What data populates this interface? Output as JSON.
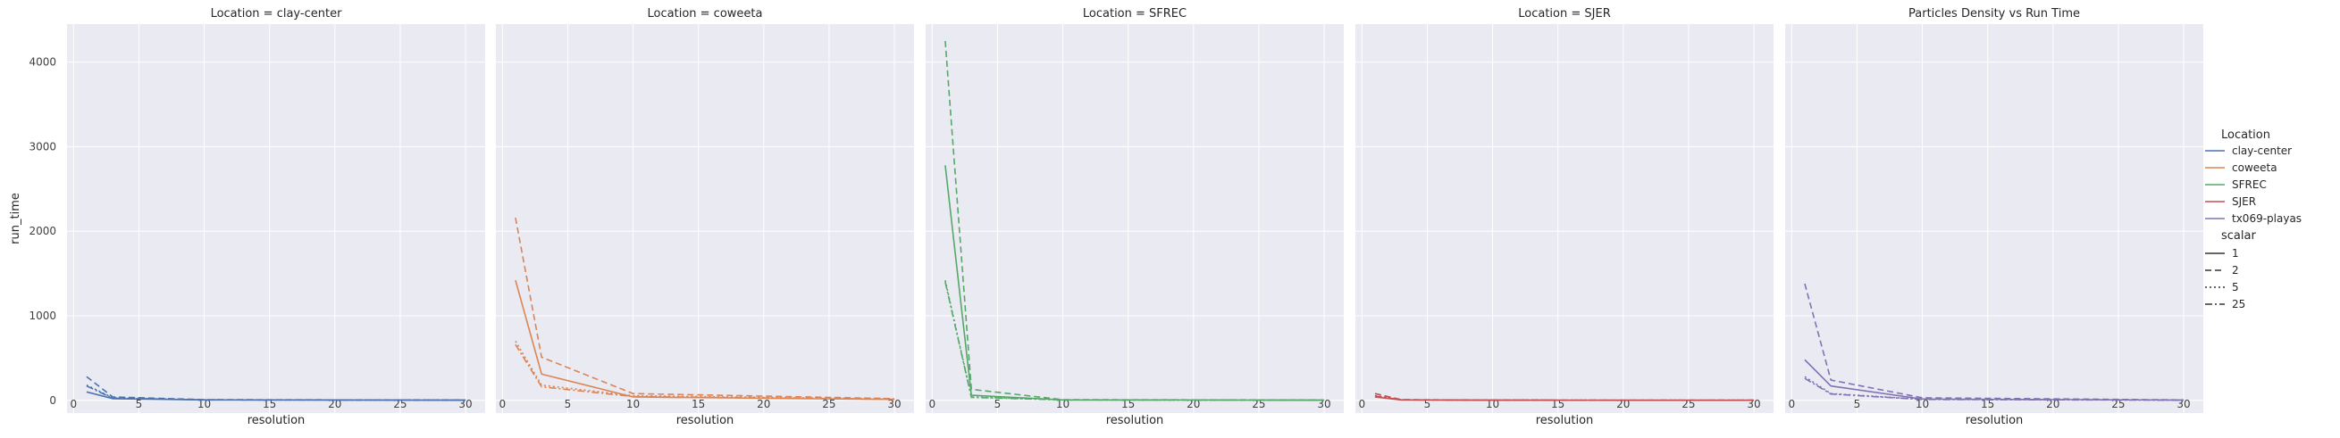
{
  "chart_data": {
    "type": "line",
    "xlabel": "resolution",
    "ylabel": "run_time",
    "xlim": [
      -0.5,
      31.5
    ],
    "ylim": [
      -150,
      4450
    ],
    "x_ticks": [
      0,
      5,
      10,
      15,
      20,
      25,
      30
    ],
    "y_ticks": [
      0,
      1000,
      2000,
      3000,
      4000
    ],
    "grid": true,
    "legend_placement": "right",
    "colors": {
      "clay-center": "#4c72b0",
      "coweeta": "#dd8452",
      "SFREC": "#55a868",
      "SJER": "#c44e52",
      "tx069-playas": "#8172b3"
    },
    "facets": [
      {
        "title": "Location = clay-center",
        "location": "clay-center",
        "series": [
          {
            "scalar": "1",
            "x": [
              1,
              3,
              10,
              30
            ],
            "y": [
              100,
              20,
              5,
              2
            ]
          },
          {
            "scalar": "2",
            "x": [
              1,
              3,
              10,
              30
            ],
            "y": [
              280,
              40,
              8,
              3
            ]
          },
          {
            "scalar": "5",
            "x": [
              1,
              3,
              10,
              30
            ],
            "y": [
              180,
              30,
              6,
              2
            ]
          },
          {
            "scalar": "25",
            "x": [
              1,
              3,
              10,
              30
            ],
            "y": [
              170,
              25,
              6,
              2
            ]
          }
        ]
      },
      {
        "title": "Location = coweeta",
        "location": "coweeta",
        "series": [
          {
            "scalar": "1",
            "x": [
              1,
              3,
              10,
              30
            ],
            "y": [
              1420,
              310,
              40,
              10
            ]
          },
          {
            "scalar": "2",
            "x": [
              1,
              3,
              10,
              30
            ],
            "y": [
              2160,
              510,
              80,
              20
            ]
          },
          {
            "scalar": "5",
            "x": [
              1,
              3,
              10,
              30
            ],
            "y": [
              700,
              180,
              55,
              15
            ]
          },
          {
            "scalar": "25",
            "x": [
              1,
              3,
              10,
              30
            ],
            "y": [
              660,
              160,
              45,
              12
            ]
          }
        ]
      },
      {
        "title": "Location = SFREC",
        "location": "SFREC",
        "series": [
          {
            "scalar": "1",
            "x": [
              1,
              3,
              10,
              30
            ],
            "y": [
              2780,
              60,
              5,
              2
            ]
          },
          {
            "scalar": "2",
            "x": [
              1,
              3,
              10,
              30
            ],
            "y": [
              4250,
              130,
              8,
              3
            ]
          },
          {
            "scalar": "5",
            "x": [
              1,
              3,
              10,
              30
            ],
            "y": [
              1420,
              40,
              5,
              2
            ]
          },
          {
            "scalar": "25",
            "x": [
              1,
              3,
              10,
              30
            ],
            "y": [
              1400,
              35,
              5,
              2
            ]
          }
        ]
      },
      {
        "title": "Location = SJER",
        "location": "SJER",
        "series": [
          {
            "scalar": "1",
            "x": [
              1,
              3,
              10,
              30
            ],
            "y": [
              40,
              5,
              2,
              1
            ]
          },
          {
            "scalar": "2",
            "x": [
              1,
              3,
              10,
              30
            ],
            "y": [
              80,
              8,
              2,
              1
            ]
          },
          {
            "scalar": "5",
            "x": [
              1,
              3,
              10,
              30
            ],
            "y": [
              55,
              6,
              2,
              1
            ]
          },
          {
            "scalar": "25",
            "x": [
              1,
              3,
              10,
              30
            ],
            "y": [
              50,
              6,
              2,
              1
            ]
          }
        ]
      },
      {
        "title": "Particles Density vs Run Time",
        "location": "tx069-playas",
        "series": [
          {
            "scalar": "1",
            "x": [
              1,
              3,
              10,
              30
            ],
            "y": [
              480,
              170,
              15,
              3
            ]
          },
          {
            "scalar": "2",
            "x": [
              1,
              3,
              10,
              30
            ],
            "y": [
              1380,
              240,
              30,
              5
            ]
          },
          {
            "scalar": "5",
            "x": [
              1,
              3,
              10,
              30
            ],
            "y": [
              280,
              80,
              12,
              3
            ]
          },
          {
            "scalar": "25",
            "x": [
              1,
              3,
              10,
              30
            ],
            "y": [
              260,
              75,
              10,
              2
            ]
          }
        ]
      }
    ],
    "legend": {
      "hue_title": "Location",
      "hue_entries": [
        "clay-center",
        "coweeta",
        "SFREC",
        "SJER",
        "tx069-playas"
      ],
      "style_title": "scalar",
      "style_entries": [
        {
          "label": "1",
          "dash": "solid"
        },
        {
          "label": "2",
          "dash": "dashed"
        },
        {
          "label": "5",
          "dash": "dotted"
        },
        {
          "label": "25",
          "dash": "dashdot"
        }
      ]
    }
  }
}
